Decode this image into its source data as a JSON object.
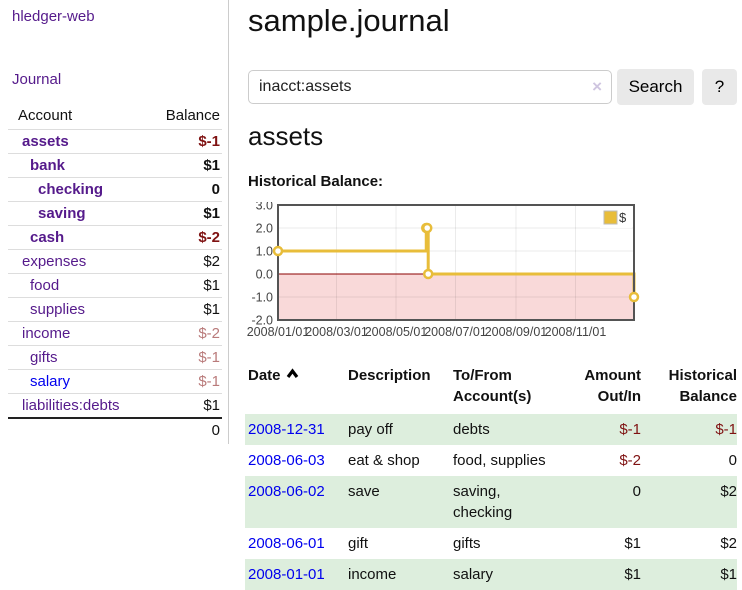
{
  "window": {
    "brand": "hledger-web",
    "nav_journal": "Journal"
  },
  "sidebar": {
    "account_header": "Account",
    "balance_header": "Balance",
    "accounts": [
      {
        "name": "assets",
        "balance": "$-1",
        "depth": 1,
        "bold": true,
        "negative": "strong"
      },
      {
        "name": "bank",
        "balance": "$1",
        "depth": 2,
        "bold": true,
        "negative": null
      },
      {
        "name": "checking",
        "balance": "0",
        "depth": 3,
        "bold": true,
        "negative": null
      },
      {
        "name": "saving",
        "balance": "$1",
        "depth": 3,
        "bold": true,
        "negative": null
      },
      {
        "name": "cash",
        "balance": "$-2",
        "depth": 2,
        "bold": true,
        "negative": "strong"
      },
      {
        "name": "expenses",
        "balance": "$2",
        "depth": 1,
        "bold": false,
        "negative": null
      },
      {
        "name": "food",
        "balance": "$1",
        "depth": 2,
        "bold": false,
        "negative": null
      },
      {
        "name": "supplies",
        "balance": "$1",
        "depth": 2,
        "bold": false,
        "negative": null
      },
      {
        "name": "income",
        "balance": "$-2",
        "depth": 1,
        "bold": false,
        "negative": "muted"
      },
      {
        "name": "gifts",
        "balance": "$-1",
        "depth": 2,
        "bold": false,
        "negative": "muted"
      },
      {
        "name": "salary",
        "balance": "$-1",
        "depth": 2,
        "bold": false,
        "negative": "muted",
        "unvisited": true
      },
      {
        "name": "liabilities:debts",
        "balance": "$1",
        "depth": 1,
        "bold": false,
        "negative": null
      }
    ],
    "total": "0"
  },
  "main": {
    "title": "sample.journal",
    "search": {
      "value": "inacct:assets",
      "clear_icon": "×",
      "button_label": "Search",
      "help_label": "?"
    },
    "account_heading": "assets",
    "chart_label": "Historical Balance:"
  },
  "transactions": {
    "headers": {
      "date": "Date",
      "description": "Description",
      "accounts": "To/From Account(s)",
      "amount": "Amount Out/In",
      "balance": "Historical Balance"
    },
    "sort": "date-ascending-indicator",
    "rows": [
      {
        "date": "2008-12-31",
        "description": "pay off",
        "accounts": "debts",
        "amount": "$-1",
        "balance": "$-1"
      },
      {
        "date": "2008-06-03",
        "description": "eat & shop",
        "accounts": "food, supplies",
        "amount": "$-2",
        "balance": "0"
      },
      {
        "date": "2008-06-02",
        "description": "save",
        "accounts": "saving, checking",
        "amount": "0",
        "balance": "$2"
      },
      {
        "date": "2008-06-01",
        "description": "gift",
        "accounts": "gifts",
        "amount": "$1",
        "balance": "$2"
      },
      {
        "date": "2008-01-01",
        "description": "income",
        "accounts": "salary",
        "amount": "$1",
        "balance": "$1"
      }
    ]
  },
  "chart_data": {
    "type": "line",
    "step": true,
    "title": "Historical Balance",
    "series": [
      {
        "name": "$",
        "color": "#e8bd3a",
        "points": [
          [
            "2008-01-01",
            1
          ],
          [
            "2008-06-01",
            2
          ],
          [
            "2008-06-02",
            2
          ],
          [
            "2008-06-03",
            0
          ],
          [
            "2008-12-31",
            -1
          ]
        ]
      }
    ],
    "x_range": [
      "2008-01-01",
      "2008-12-31"
    ],
    "ylim": [
      -2,
      3
    ],
    "x_ticks": [
      "2008/01/01",
      "2008/03/01",
      "2008/05/01",
      "2008/07/01",
      "2008/09/01",
      "2008/11/01"
    ],
    "y_ticks": [
      "3.0",
      "2.0",
      "1.0",
      "0.0",
      "-1.0",
      "-2.0"
    ],
    "grid": true,
    "legend_position": "top-right",
    "negative_region_color": "#f9d9d9",
    "zero_line_color": "#8b0000",
    "grid_color": "rgba(0,0,0,0.08)",
    "border_color": "#545454",
    "tick_label_color": "#444444"
  },
  "colors": {
    "link_visited": "#551a8b",
    "link_new": "#0000ee",
    "negative_strong": "#7f1212",
    "negative_muted": "#b97a7a",
    "row_stripe_green": "#ddeedd",
    "series_gold": "#e8bd3a"
  }
}
